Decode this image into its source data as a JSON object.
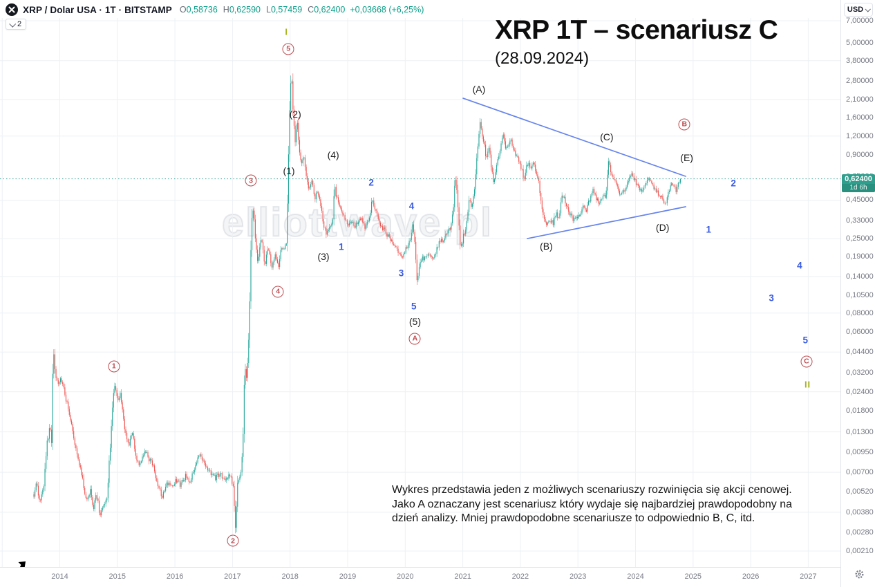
{
  "symbol_bar": {
    "symbol": "XRP / Dolar USA · 1T · BITSTAMP",
    "ohlc": [
      {
        "label": "O",
        "value": "0,58736"
      },
      {
        "label": "H",
        "value": "0,62590"
      },
      {
        "label": "L",
        "value": "0,57459"
      },
      {
        "label": "C",
        "value": "0,62400"
      }
    ],
    "change": "+0,03668 (+6,25%)",
    "legend_toggle_count": "2"
  },
  "watermark": "elliottwave.pl",
  "price_axis": {
    "currency": "USD",
    "badge": {
      "price": "0,62400",
      "countdown": "1d 6h"
    }
  },
  "chart_data": {
    "type": "candlestick",
    "symbol": "XRP/USD",
    "exchange": "BITSTAMP",
    "timeframe": "1T (weekly)",
    "y_scale": "log",
    "title": "XRP 1T – scenariusz C",
    "subtitle": "(28.09.2024)",
    "note_lines": [
      "Wykres przedstawia jeden z możliwych scenariuszy rozwinięcia się akcji cenowej.",
      "Jako A oznaczany jest scenariusz który wydaje się najbardziej prawdopodobny na",
      "dzień analizy. Mniej prawdopodobne scenariusze to odpowiednio B, C, itd."
    ],
    "x_domain_years": [
      2013.4,
      2028.3
    ],
    "y_domain_price": [
      0.0019,
      8.0
    ],
    "current_price": 0.624,
    "last_candle": {
      "open": 0.58736,
      "high": 0.6259,
      "low": 0.57459,
      "close": 0.624
    },
    "price_ticks": [
      {
        "label": "7,00000",
        "value": 7.0
      },
      {
        "label": "5,00000",
        "value": 5.0
      },
      {
        "label": "3,80000",
        "value": 3.8
      },
      {
        "label": "2,80000",
        "value": 2.8
      },
      {
        "label": "2,10000",
        "value": 2.1
      },
      {
        "label": "1,60000",
        "value": 1.6
      },
      {
        "label": "1,20000",
        "value": 1.2
      },
      {
        "label": "0,90000",
        "value": 0.9
      },
      {
        "label": "0,65000",
        "value": 0.65
      },
      {
        "label": "0,45000",
        "value": 0.45
      },
      {
        "label": "0,33000",
        "value": 0.33
      },
      {
        "label": "0,25000",
        "value": 0.25
      },
      {
        "label": "0,19000",
        "value": 0.19
      },
      {
        "label": "0,14000",
        "value": 0.14
      },
      {
        "label": "0,10500",
        "value": 0.105
      },
      {
        "label": "0,08000",
        "value": 0.08
      },
      {
        "label": "0,06000",
        "value": 0.06
      },
      {
        "label": "0,04400",
        "value": 0.044
      },
      {
        "label": "0,03200",
        "value": 0.032
      },
      {
        "label": "0,02400",
        "value": 0.024
      },
      {
        "label": "0,01800",
        "value": 0.018
      },
      {
        "label": "0,01300",
        "value": 0.013
      },
      {
        "label": "0,00950",
        "value": 0.0095
      },
      {
        "label": "0,00700",
        "value": 0.007
      },
      {
        "label": "0,00520",
        "value": 0.0052
      },
      {
        "label": "0,00380",
        "value": 0.0038
      },
      {
        "label": "0,00280",
        "value": 0.0028
      },
      {
        "label": "0,00210",
        "value": 0.0021
      }
    ],
    "grid_prices": [
      7.0,
      3.8,
      2.1,
      1.2,
      0.45,
      0.25,
      0.14,
      0.08,
      0.044,
      0.024,
      0.013,
      0.007,
      0.0038,
      0.0021
    ],
    "years": [
      2014,
      2015,
      2016,
      2017,
      2018,
      2019,
      2020,
      2021,
      2022,
      2023,
      2024,
      2025,
      2026,
      2027
    ],
    "grid_years": [
      2013,
      2014,
      2015,
      2016,
      2017,
      2018,
      2019,
      2020,
      2021,
      2022,
      2023,
      2024,
      2025,
      2026,
      2027
    ],
    "colors": {
      "up": "#26a69a",
      "down": "#ef5350",
      "trendline": "#6684ec",
      "price_line": "#2a9d8f",
      "wave_circle": "#bd4a4e",
      "wave_blue": "#3a5be0",
      "wave_roman": "#a6b41f",
      "grid": "#eef0f4"
    },
    "trendlines": [
      {
        "name": "triangle-upper",
        "from": [
          2021.005,
          2.14
        ],
        "to": [
          2024.87,
          0.648
        ]
      },
      {
        "name": "triangle-lower",
        "from": [
          2022.12,
          0.25
        ],
        "to": [
          2024.87,
          0.407
        ]
      }
    ],
    "price_line": {
      "value": 0.624,
      "style": "dotted"
    },
    "annotations": [
      {
        "text": "1",
        "style": "wave-circle",
        "t": 2014.94,
        "p": 0.0354
      },
      {
        "text": "2",
        "style": "wave-circle",
        "t": 2017.008,
        "p": 0.00246
      },
      {
        "text": "3",
        "style": "wave-circle",
        "t": 2017.32,
        "p": 0.608
      },
      {
        "text": "4",
        "style": "wave-circle",
        "t": 2017.79,
        "p": 0.111
      },
      {
        "text": "5",
        "style": "wave-circle",
        "t": 2017.97,
        "p": 4.54
      },
      {
        "text": "A",
        "style": "wave-circle",
        "t": 2020.17,
        "p": 0.054
      },
      {
        "text": "B",
        "style": "wave-circle",
        "t": 2024.85,
        "p": 1.433
      },
      {
        "text": "C",
        "style": "wave-circle",
        "t": 2026.97,
        "p": 0.0381
      },
      {
        "text": "I",
        "style": "wave-roman",
        "t": 2017.94,
        "p": 5.91
      },
      {
        "text": "II",
        "style": "wave-roman",
        "t": 2026.99,
        "p": 0.0268
      },
      {
        "text": "(1)",
        "style": "wave-paren",
        "t": 2017.98,
        "p": 0.705
      },
      {
        "text": "(2)",
        "style": "wave-paren",
        "t": 2018.09,
        "p": 1.679
      },
      {
        "text": "(3)",
        "style": "wave-paren",
        "t": 2018.58,
        "p": 0.19
      },
      {
        "text": "(4)",
        "style": "wave-paren",
        "t": 2018.75,
        "p": 0.9
      },
      {
        "text": "(5)",
        "style": "wave-paren",
        "t": 2020.17,
        "p": 0.0706
      },
      {
        "text": "(A)",
        "style": "wave-paren",
        "t": 2021.28,
        "p": 2.457
      },
      {
        "text": "(B)",
        "style": "wave-paren",
        "t": 2022.45,
        "p": 0.222
      },
      {
        "text": "(C)",
        "style": "wave-paren",
        "t": 2023.5,
        "p": 1.184
      },
      {
        "text": "(D)",
        "style": "wave-paren",
        "t": 2024.47,
        "p": 0.296
      },
      {
        "text": "(E)",
        "style": "wave-paren",
        "t": 2024.89,
        "p": 0.862
      },
      {
        "text": "1",
        "style": "wave-blue",
        "t": 2018.89,
        "p": 0.22
      },
      {
        "text": "2",
        "style": "wave-blue",
        "t": 2019.41,
        "p": 0.589
      },
      {
        "text": "3",
        "style": "wave-blue",
        "t": 2019.93,
        "p": 0.147
      },
      {
        "text": "4",
        "style": "wave-blue",
        "t": 2020.11,
        "p": 0.411
      },
      {
        "text": "5",
        "style": "wave-blue",
        "t": 2020.15,
        "p": 0.0888
      },
      {
        "text": "1",
        "style": "wave-blue",
        "t": 2025.27,
        "p": 0.287
      },
      {
        "text": "2",
        "style": "wave-blue",
        "t": 2025.7,
        "p": 0.583
      },
      {
        "text": "3",
        "style": "wave-blue",
        "t": 2026.36,
        "p": 0.101
      },
      {
        "text": "4",
        "style": "wave-blue",
        "t": 2026.85,
        "p": 0.166
      },
      {
        "text": "5",
        "style": "wave-blue",
        "t": 2026.95,
        "p": 0.0529
      }
    ],
    "price_path": [
      [
        2013.55,
        0.005
      ],
      [
        2013.6,
        0.006
      ],
      [
        2013.65,
        0.0044
      ],
      [
        2013.72,
        0.0056
      ],
      [
        2013.78,
        0.011
      ],
      [
        2013.83,
        0.014
      ],
      [
        2013.86,
        0.011
      ],
      [
        2013.885,
        0.05
      ],
      [
        2013.92,
        0.031
      ],
      [
        2013.96,
        0.027
      ],
      [
        2014.02,
        0.03
      ],
      [
        2014.08,
        0.024
      ],
      [
        2014.14,
        0.019
      ],
      [
        2014.2,
        0.015
      ],
      [
        2014.27,
        0.0105
      ],
      [
        2014.34,
        0.008
      ],
      [
        2014.41,
        0.0058
      ],
      [
        2014.47,
        0.0045
      ],
      [
        2014.53,
        0.0055
      ],
      [
        2014.58,
        0.004
      ],
      [
        2014.64,
        0.005
      ],
      [
        2014.7,
        0.0036
      ],
      [
        2014.76,
        0.0042
      ],
      [
        2014.82,
        0.0048
      ],
      [
        2014.88,
        0.011
      ],
      [
        2014.93,
        0.0235
      ],
      [
        2014.96,
        0.027
      ],
      [
        2015.0,
        0.0205
      ],
      [
        2015.05,
        0.0235
      ],
      [
        2015.12,
        0.014
      ],
      [
        2015.19,
        0.0105
      ],
      [
        2015.26,
        0.013
      ],
      [
        2015.33,
        0.0088
      ],
      [
        2015.4,
        0.0078
      ],
      [
        2015.47,
        0.01
      ],
      [
        2015.54,
        0.0086
      ],
      [
        2015.62,
        0.0078
      ],
      [
        2015.7,
        0.0058
      ],
      [
        2015.78,
        0.0048
      ],
      [
        2015.85,
        0.006
      ],
      [
        2015.93,
        0.0056
      ],
      [
        2016.01,
        0.0062
      ],
      [
        2016.1,
        0.0057
      ],
      [
        2016.18,
        0.0066
      ],
      [
        2016.27,
        0.0062
      ],
      [
        2016.36,
        0.008
      ],
      [
        2016.44,
        0.0092
      ],
      [
        2016.51,
        0.0078
      ],
      [
        2016.6,
        0.007
      ],
      [
        2016.69,
        0.0064
      ],
      [
        2016.78,
        0.0068
      ],
      [
        2016.87,
        0.0063
      ],
      [
        2016.96,
        0.0066
      ],
      [
        2017.01,
        0.0058
      ],
      [
        2017.05,
        0.003
      ],
      [
        2017.09,
        0.006
      ],
      [
        2017.14,
        0.0068
      ],
      [
        2017.18,
        0.01
      ],
      [
        2017.21,
        0.034
      ],
      [
        2017.25,
        0.03
      ],
      [
        2017.29,
        0.065
      ],
      [
        2017.33,
        0.33
      ],
      [
        2017.36,
        0.4
      ],
      [
        2017.4,
        0.25
      ],
      [
        2017.44,
        0.175
      ],
      [
        2017.5,
        0.26
      ],
      [
        2017.56,
        0.165
      ],
      [
        2017.62,
        0.22
      ],
      [
        2017.68,
        0.155
      ],
      [
        2017.74,
        0.19
      ],
      [
        2017.8,
        0.165
      ],
      [
        2017.85,
        0.225
      ],
      [
        2017.9,
        0.215
      ],
      [
        2017.94,
        0.245
      ],
      [
        2017.97,
        0.78
      ],
      [
        2018.0,
        2.3
      ],
      [
        2018.025,
        3.1
      ],
      [
        2018.05,
        1.75
      ],
      [
        2018.09,
        1.05
      ],
      [
        2018.12,
        1.62
      ],
      [
        2018.16,
        0.98
      ],
      [
        2018.2,
        0.78
      ],
      [
        2018.24,
        0.9
      ],
      [
        2018.28,
        0.66
      ],
      [
        2018.33,
        0.52
      ],
      [
        2018.38,
        0.6
      ],
      [
        2018.43,
        0.47
      ],
      [
        2018.48,
        0.52
      ],
      [
        2018.53,
        0.42
      ],
      [
        2018.58,
        0.3
      ],
      [
        2018.64,
        0.27
      ],
      [
        2018.7,
        0.3
      ],
      [
        2018.75,
        0.34
      ],
      [
        2018.77,
        0.66
      ],
      [
        2018.79,
        0.48
      ],
      [
        2018.84,
        0.44
      ],
      [
        2018.9,
        0.38
      ],
      [
        2018.95,
        0.34
      ],
      [
        2019.0,
        0.31
      ],
      [
        2019.06,
        0.33
      ],
      [
        2019.12,
        0.3
      ],
      [
        2019.18,
        0.32
      ],
      [
        2019.24,
        0.34
      ],
      [
        2019.3,
        0.3
      ],
      [
        2019.37,
        0.33
      ],
      [
        2019.43,
        0.46
      ],
      [
        2019.48,
        0.4
      ],
      [
        2019.54,
        0.33
      ],
      [
        2019.6,
        0.3
      ],
      [
        2019.67,
        0.27
      ],
      [
        2019.74,
        0.25
      ],
      [
        2019.81,
        0.23
      ],
      [
        2019.88,
        0.205
      ],
      [
        2019.95,
        0.19
      ],
      [
        2020.02,
        0.215
      ],
      [
        2020.08,
        0.24
      ],
      [
        2020.13,
        0.31
      ],
      [
        2020.17,
        0.23
      ],
      [
        2020.21,
        0.125
      ],
      [
        2020.25,
        0.17
      ],
      [
        2020.31,
        0.185
      ],
      [
        2020.38,
        0.2
      ],
      [
        2020.45,
        0.185
      ],
      [
        2020.52,
        0.2
      ],
      [
        2020.59,
        0.235
      ],
      [
        2020.66,
        0.25
      ],
      [
        2020.73,
        0.27
      ],
      [
        2020.8,
        0.31
      ],
      [
        2020.84,
        0.4
      ],
      [
        2020.87,
        0.7
      ],
      [
        2020.9,
        0.48
      ],
      [
        2020.96,
        0.21
      ],
      [
        2021.01,
        0.26
      ],
      [
        2021.06,
        0.3
      ],
      [
        2021.11,
        0.46
      ],
      [
        2021.16,
        0.4
      ],
      [
        2021.21,
        0.56
      ],
      [
        2021.26,
        1.05
      ],
      [
        2021.3,
        1.55
      ],
      [
        2021.33,
        1.3
      ],
      [
        2021.37,
        1.05
      ],
      [
        2021.41,
        0.85
      ],
      [
        2021.45,
        1.02
      ],
      [
        2021.49,
        0.78
      ],
      [
        2021.53,
        0.58
      ],
      [
        2021.58,
        0.74
      ],
      [
        2021.63,
        0.9
      ],
      [
        2021.68,
        1.1
      ],
      [
        2021.71,
        1.24
      ],
      [
        2021.75,
        0.98
      ],
      [
        2021.79,
        1.06
      ],
      [
        2021.83,
        1.12
      ],
      [
        2021.87,
        1.0
      ],
      [
        2021.91,
        0.92
      ],
      [
        2021.95,
        0.86
      ],
      [
        2021.99,
        0.82
      ],
      [
        2022.03,
        0.7
      ],
      [
        2022.07,
        0.6
      ],
      [
        2022.11,
        0.76
      ],
      [
        2022.15,
        0.8
      ],
      [
        2022.19,
        0.74
      ],
      [
        2022.23,
        0.8
      ],
      [
        2022.27,
        0.7
      ],
      [
        2022.32,
        0.58
      ],
      [
        2022.37,
        0.42
      ],
      [
        2022.42,
        0.33
      ],
      [
        2022.47,
        0.31
      ],
      [
        2022.52,
        0.335
      ],
      [
        2022.57,
        0.32
      ],
      [
        2022.62,
        0.37
      ],
      [
        2022.67,
        0.345
      ],
      [
        2022.72,
        0.49
      ],
      [
        2022.76,
        0.46
      ],
      [
        2022.81,
        0.4
      ],
      [
        2022.86,
        0.37
      ],
      [
        2022.91,
        0.335
      ],
      [
        2022.96,
        0.35
      ],
      [
        2023.02,
        0.36
      ],
      [
        2023.08,
        0.4
      ],
      [
        2023.14,
        0.38
      ],
      [
        2023.2,
        0.45
      ],
      [
        2023.25,
        0.53
      ],
      [
        2023.31,
        0.46
      ],
      [
        2023.37,
        0.44
      ],
      [
        2023.43,
        0.47
      ],
      [
        2023.49,
        0.49
      ],
      [
        2023.53,
        0.82
      ],
      [
        2023.57,
        0.7
      ],
      [
        2023.62,
        0.62
      ],
      [
        2023.67,
        0.58
      ],
      [
        2023.72,
        0.5
      ],
      [
        2023.78,
        0.51
      ],
      [
        2023.84,
        0.55
      ],
      [
        2023.89,
        0.63
      ],
      [
        2023.93,
        0.66
      ],
      [
        2023.98,
        0.61
      ],
      [
        2024.04,
        0.56
      ],
      [
        2024.1,
        0.52
      ],
      [
        2024.16,
        0.56
      ],
      [
        2024.22,
        0.62
      ],
      [
        2024.28,
        0.59
      ],
      [
        2024.34,
        0.53
      ],
      [
        2024.4,
        0.5
      ],
      [
        2024.46,
        0.47
      ],
      [
        2024.52,
        0.42
      ],
      [
        2024.57,
        0.5
      ],
      [
        2024.62,
        0.585
      ],
      [
        2024.66,
        0.55
      ],
      [
        2024.7,
        0.52
      ],
      [
        2024.74,
        0.565
      ],
      [
        2024.79,
        0.624
      ]
    ]
  }
}
